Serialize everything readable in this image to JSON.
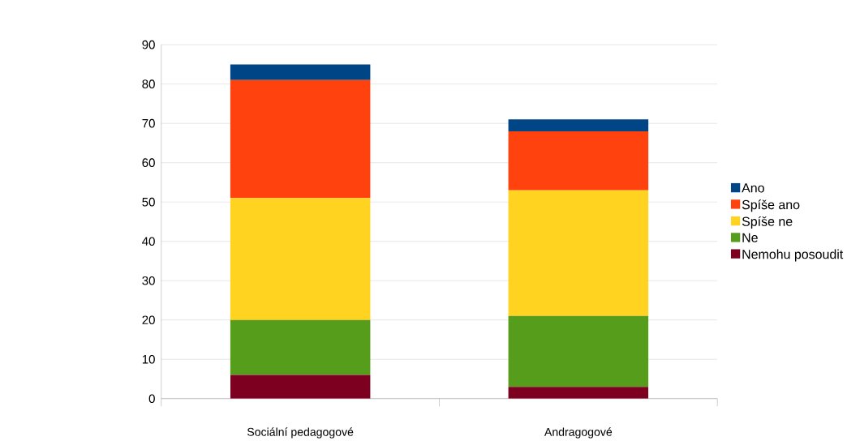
{
  "chart_data": {
    "type": "bar",
    "stacked": true,
    "categories": [
      "Sociální pedagogové",
      "Andragogové"
    ],
    "series": [
      {
        "name": "Nemohu posoudit",
        "color": "#7e0021",
        "values": [
          6,
          3
        ]
      },
      {
        "name": "Ne",
        "color": "#579d1c",
        "values": [
          14,
          18
        ]
      },
      {
        "name": "Spíše ne",
        "color": "#ffd320",
        "values": [
          31,
          32
        ]
      },
      {
        "name": "Spíše ano",
        "color": "#ff420e",
        "values": [
          30,
          15
        ]
      },
      {
        "name": "Ano",
        "color": "#004586",
        "values": [
          4,
          3
        ]
      }
    ],
    "ylim": [
      0,
      90
    ],
    "yticks": [
      0,
      10,
      20,
      30,
      40,
      50,
      60,
      70,
      80,
      90
    ],
    "grid": "y",
    "legend": "right"
  }
}
